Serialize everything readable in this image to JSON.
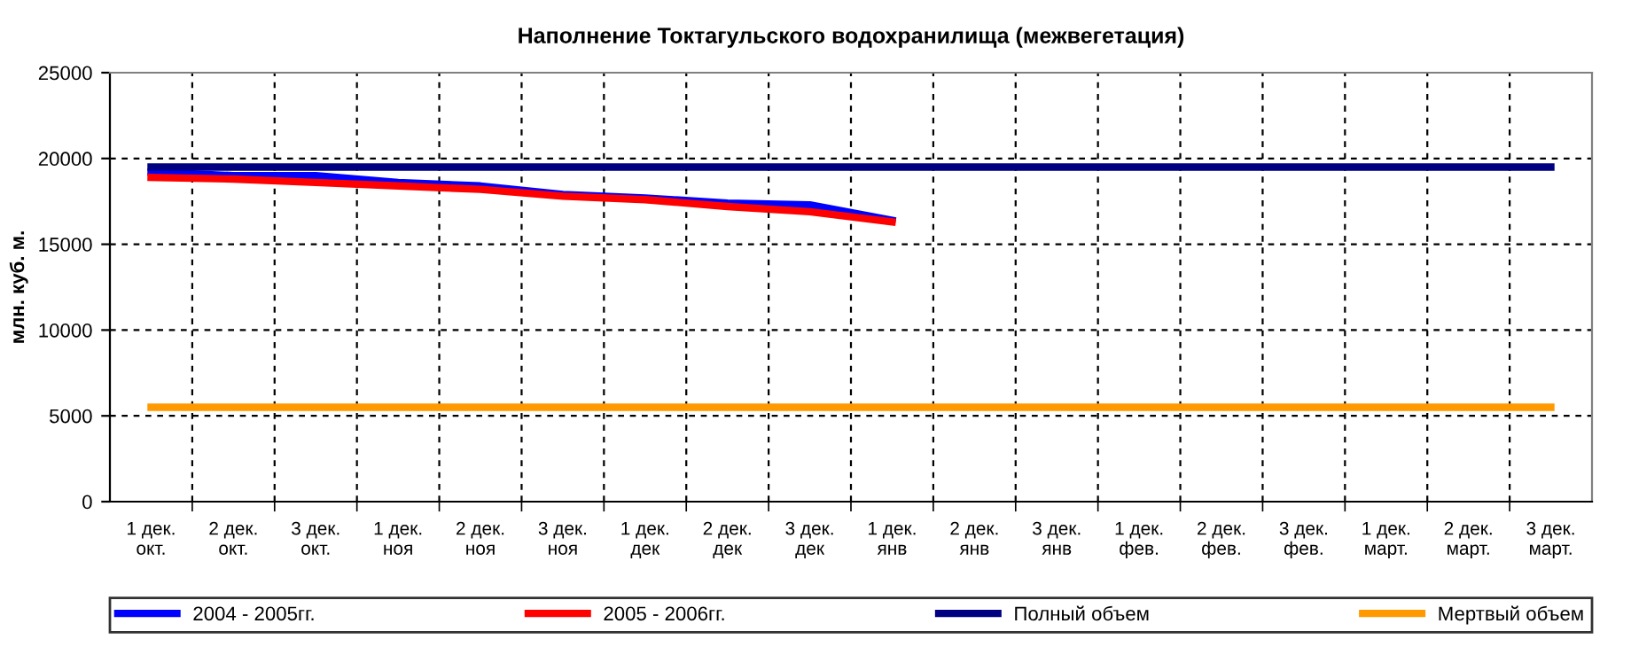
{
  "chart_data": {
    "type": "line",
    "title": "Наполнение Токтагульского водохранилища (межвегетация)",
    "ylabel": "млн. куб. м.",
    "categories": [
      "1 дек.\nокт.",
      "2 дек.\nокт.",
      "3 дек.\nокт.",
      "1 дек.\nноя",
      "2 дек.\nноя",
      "3 дек.\nноя",
      "1 дек.\nдек",
      "2 дек.\nдек",
      "3 дек.\nдек",
      "1 дек.\nянв",
      "2 дек.\nянв",
      "3 дек.\nянв",
      "1 дек.\nфев.",
      "2 дек.\nфев.",
      "3 дек.\nфев.",
      "1 дек.\nмарт.",
      "2 дек.\nмарт.",
      "3 дек.\nмарт."
    ],
    "series": [
      {
        "name": "2004 - 2005гг.",
        "color": "#0000ff",
        "values": [
          19200,
          19000,
          19000,
          18600,
          18400,
          17900,
          17700,
          17400,
          17300,
          16400,
          null,
          null,
          null,
          null,
          null,
          null,
          null,
          null
        ]
      },
      {
        "name": "2005 - 2006гг.",
        "color": "#ff0000",
        "values": [
          18900,
          18800,
          18600,
          18400,
          18200,
          17800,
          17600,
          17200,
          16900,
          16300,
          null,
          null,
          null,
          null,
          null,
          null,
          null,
          null
        ]
      },
      {
        "name": "Полный объем",
        "color": "#000080",
        "values": [
          19500,
          19500,
          19500,
          19500,
          19500,
          19500,
          19500,
          19500,
          19500,
          19500,
          19500,
          19500,
          19500,
          19500,
          19500,
          19500,
          19500,
          19500
        ]
      },
      {
        "name": "Мертвый объем",
        "color": "#ff9900",
        "values": [
          5500,
          5500,
          5500,
          5500,
          5500,
          5500,
          5500,
          5500,
          5500,
          5500,
          5500,
          5500,
          5500,
          5500,
          5500,
          5500,
          5500,
          5500
        ]
      }
    ],
    "ylim": [
      0,
      25000
    ],
    "yticks": [
      0,
      5000,
      10000,
      15000,
      20000,
      25000
    ],
    "grid": true,
    "legend": "bottom",
    "line_style": "solid",
    "marker": "none"
  }
}
